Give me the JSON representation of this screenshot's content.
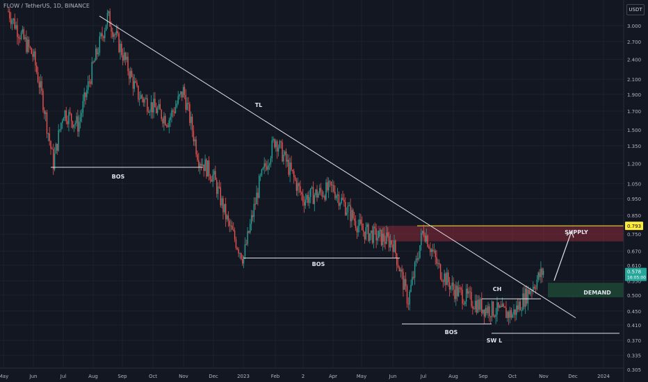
{
  "symbol_label": "FLOW / TetherUS, 1D, BINANCE",
  "currency_label": "USDT",
  "colors": {
    "background": "#131722",
    "grid": "#1e222d",
    "up": "#26a69a",
    "down": "#ef5350",
    "axis_text": "#b2b5be",
    "annotation": "#e0e3eb",
    "supply_zone": "#8e2a3a",
    "demand_zone": "#1f4d36",
    "supply_line": "#ffeb3b",
    "price_tag": "#26a69a"
  },
  "chart_data": {
    "type": "candlestick",
    "scale": "log",
    "x_ticks": [
      "May",
      "Jun",
      "Jul",
      "Aug",
      "Sep",
      "Oct",
      "Nov",
      "Dec",
      "2023",
      "Feb",
      "2",
      "Apr",
      "May",
      "Jun",
      "Jul",
      "Aug",
      "Sep",
      "Oct",
      "Nov",
      "Dec",
      "2024"
    ],
    "y_ticks": [
      "3.000",
      "2.700",
      "2.400",
      "2.100",
      "1.900",
      "1.700",
      "1.500",
      "1.350",
      "1.200",
      "1.050",
      "0.950",
      "0.850",
      "0.750",
      "0.670",
      "0.610",
      "0.550",
      "0.500",
      "0.450",
      "0.410",
      "0.370",
      "0.335",
      "0.305"
    ],
    "price_path": [
      [
        "May",
        3.3
      ],
      [
        "May",
        2.9
      ],
      [
        "Jun",
        2.45
      ],
      [
        "Jun",
        1.8
      ],
      [
        "Jun",
        1.2
      ],
      [
        "Jul",
        1.7
      ],
      [
        "Jul",
        1.55
      ],
      [
        "Aug",
        2.3
      ],
      [
        "Aug",
        3.2
      ],
      [
        "Sep",
        2.5
      ],
      [
        "Sep",
        1.9
      ],
      [
        "Oct",
        1.75
      ],
      [
        "Oct",
        1.6
      ],
      [
        "Nov",
        1.95
      ],
      [
        "Nov",
        1.25
      ],
      [
        "Dec",
        1.1
      ],
      [
        "Dec",
        0.8
      ],
      [
        "2023",
        0.64
      ],
      [
        "2023",
        1.05
      ],
      [
        "Feb",
        1.42
      ],
      [
        "2",
        0.95
      ],
      [
        "Apr",
        1.02
      ],
      [
        "May",
        0.77
      ],
      [
        "Jun",
        0.71
      ],
      [
        "Jun",
        0.48
      ],
      [
        "Jul",
        0.78
      ],
      [
        "Jul",
        0.6
      ],
      [
        "Aug",
        0.52
      ],
      [
        "Sep",
        0.46
      ],
      [
        "Oct",
        0.44
      ],
      [
        "Nov",
        0.59
      ]
    ],
    "last_price": "0.578",
    "countdown": "16:05:00",
    "supply_level": "0.793",
    "annotations": {
      "trendline": "TL",
      "bos_1": "BOS",
      "bos_2": "BOS",
      "bos_3": "BOS",
      "change_of_character": "CH",
      "swing_low": "SW L",
      "supply": "SUPPLY",
      "demand": "DEMAND"
    }
  }
}
